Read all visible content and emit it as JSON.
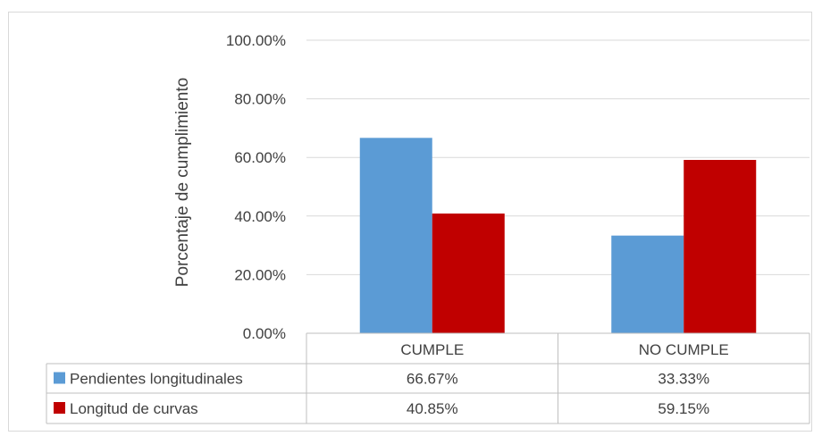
{
  "chart_data": {
    "type": "bar",
    "categories": [
      "CUMPLE",
      "NO CUMPLE"
    ],
    "series": [
      {
        "name": "Pendientes longitudinales",
        "values": [
          66.67,
          33.33
        ],
        "labels": [
          "66.67%",
          "33.33%"
        ],
        "color": "#5b9bd5"
      },
      {
        "name": "Longitud de curvas",
        "values": [
          40.85,
          59.15
        ],
        "labels": [
          "40.85%",
          "59.15%"
        ],
        "color": "#c00000"
      }
    ],
    "ylabel": "Porcentaje de cumplimiento",
    "ylim": [
      0,
      100
    ],
    "yticks": [
      "0.00%",
      "20.00%",
      "40.00%",
      "60.00%",
      "80.00%",
      "100.00%"
    ],
    "grid": true,
    "legend": "data-table"
  }
}
